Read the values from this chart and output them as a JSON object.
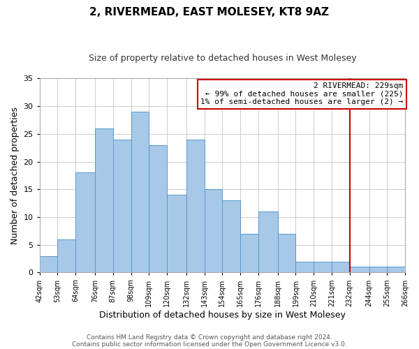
{
  "title": "2, RIVERMEAD, EAST MOLESEY, KT8 9AZ",
  "subtitle": "Size of property relative to detached houses in West Molesey",
  "xlabel": "Distribution of detached houses by size in West Molesey",
  "ylabel": "Number of detached properties",
  "bin_edges": [
    42,
    53,
    64,
    76,
    87,
    98,
    109,
    120,
    132,
    143,
    154,
    165,
    176,
    188,
    199,
    210,
    221,
    232,
    244,
    255,
    266
  ],
  "counts": [
    3,
    6,
    18,
    26,
    24,
    29,
    23,
    14,
    24,
    15,
    13,
    7,
    11,
    7,
    2,
    2,
    2,
    1,
    1,
    1
  ],
  "bar_color": "#a8c8e8",
  "bar_edge_color": "#5599cc",
  "vline_x": 232,
  "vline_color": "#cc0000",
  "annotation_title": "2 RIVERMEAD: 229sqm",
  "annotation_line1": "← 99% of detached houses are smaller (225)",
  "annotation_line2": "1% of semi-detached houses are larger (2) →",
  "annotation_box_facecolor": "#ffffff",
  "annotation_box_edge": "#cc0000",
  "ylim": [
    0,
    35
  ],
  "yticks": [
    0,
    5,
    10,
    15,
    20,
    25,
    30,
    35
  ],
  "tick_labels": [
    "42sqm",
    "53sqm",
    "64sqm",
    "76sqm",
    "87sqm",
    "98sqm",
    "109sqm",
    "120sqm",
    "132sqm",
    "143sqm",
    "154sqm",
    "165sqm",
    "176sqm",
    "188sqm",
    "199sqm",
    "210sqm",
    "221sqm",
    "232sqm",
    "244sqm",
    "255sqm",
    "266sqm"
  ],
  "footer1": "Contains HM Land Registry data © Crown copyright and database right 2024.",
  "footer2": "Contains public sector information licensed under the Open Government Licence v3.0.",
  "bg_color": "#ffffff",
  "grid_color": "#cccccc",
  "title_fontsize": 11,
  "subtitle_fontsize": 9,
  "xlabel_fontsize": 9,
  "ylabel_fontsize": 9,
  "xtick_fontsize": 7,
  "ytick_fontsize": 8,
  "annotation_fontsize": 8,
  "footer_fontsize": 6.5
}
